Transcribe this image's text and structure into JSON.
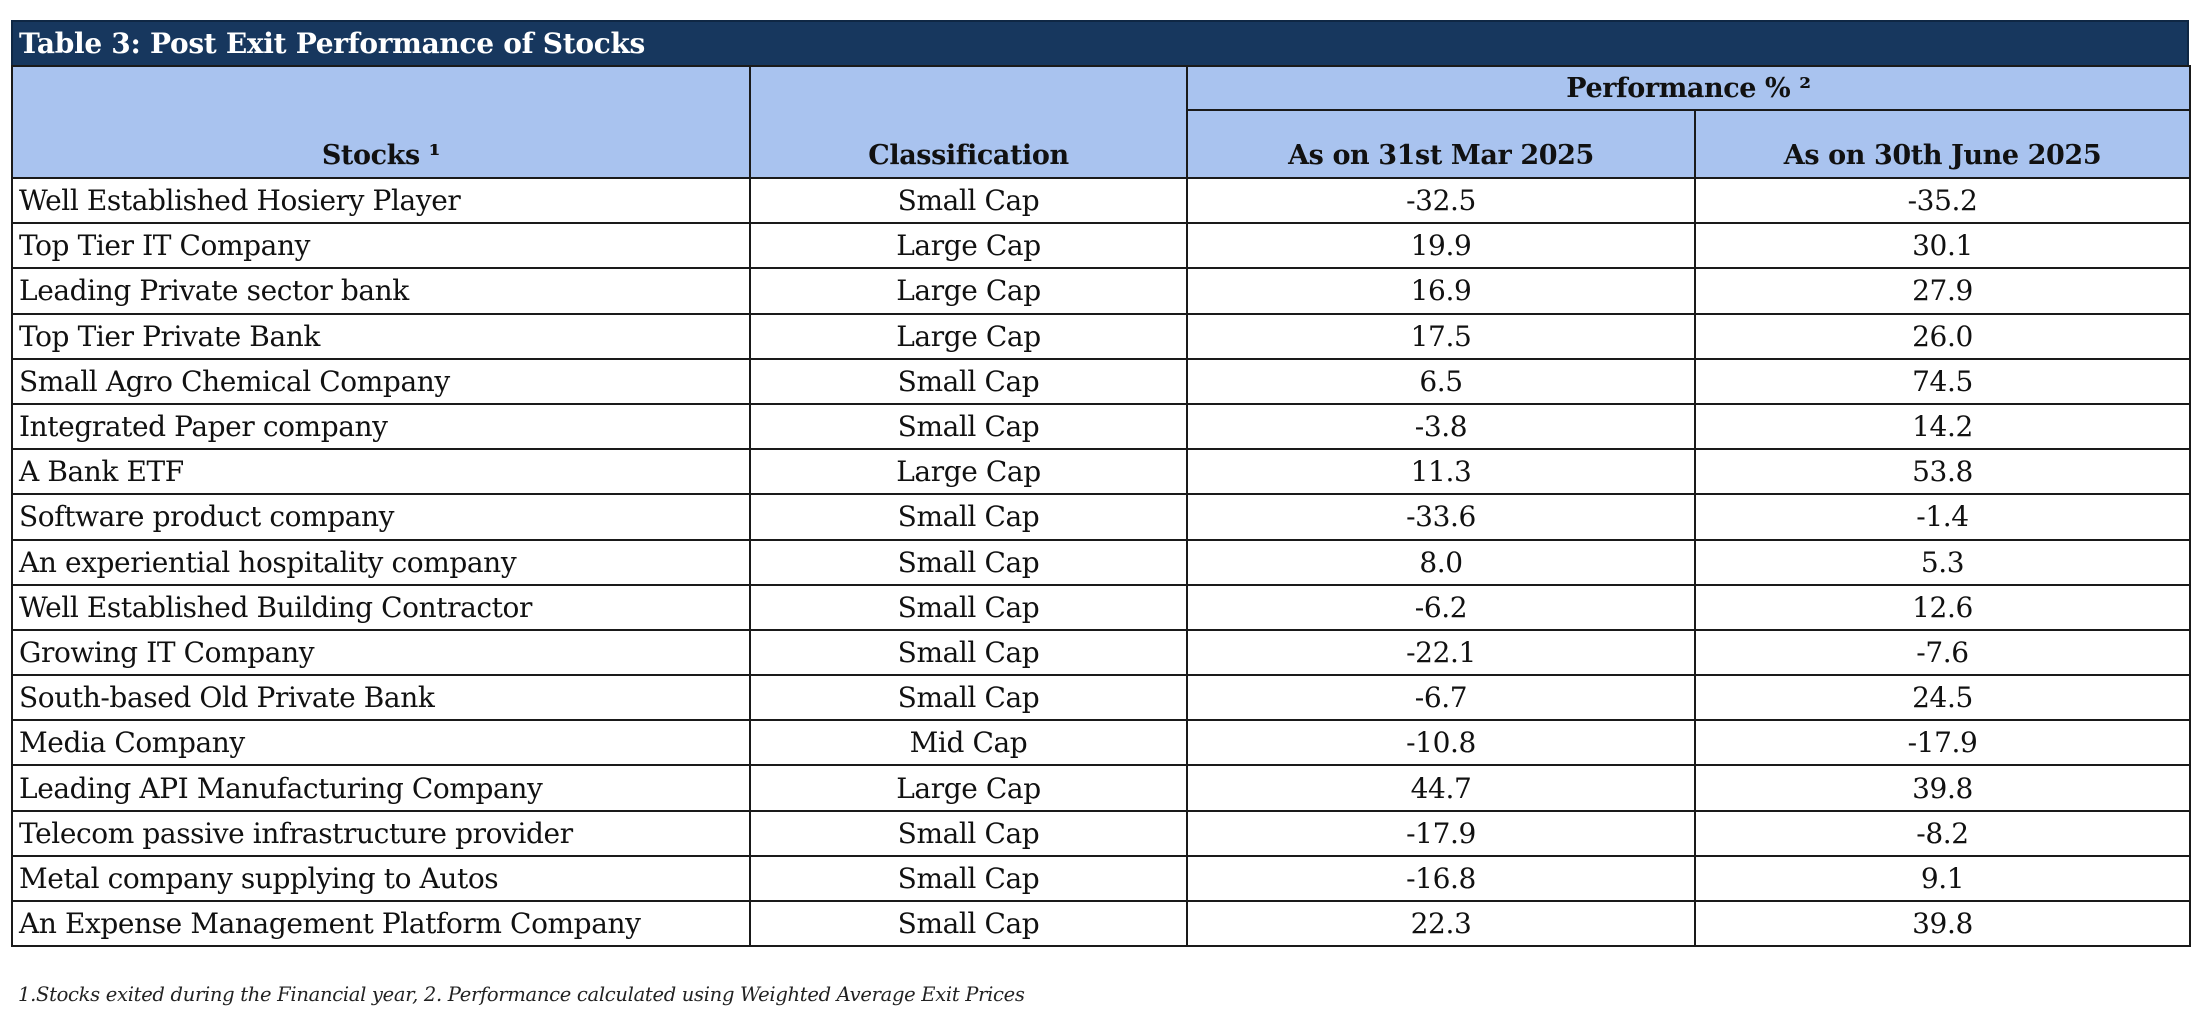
{
  "title": "Table 3: Post Exit Performance of Stocks",
  "headers": {
    "stocks": "Stocks ¹",
    "classification": "Classification",
    "performance": "Performance % ²",
    "mar": "As on 31st Mar 2025",
    "jun": "As on 30th June 2025"
  },
  "rows": [
    {
      "stock": "Well Established Hosiery Player",
      "class": "Small Cap",
      "mar": "-32.5",
      "jun": "-35.2"
    },
    {
      "stock": "Top Tier IT Company",
      "class": "Large Cap",
      "mar": "19.9",
      "jun": "30.1"
    },
    {
      "stock": "Leading Private sector bank",
      "class": "Large Cap",
      "mar": "16.9",
      "jun": "27.9"
    },
    {
      "stock": "Top Tier Private Bank",
      "class": "Large Cap",
      "mar": "17.5",
      "jun": "26.0"
    },
    {
      "stock": "Small Agro Chemical Company",
      "class": "Small Cap",
      "mar": "6.5",
      "jun": "74.5"
    },
    {
      "stock": "Integrated Paper company",
      "class": "Small Cap",
      "mar": "-3.8",
      "jun": "14.2"
    },
    {
      "stock": "A Bank ETF",
      "class": "Large Cap",
      "mar": "11.3",
      "jun": "53.8"
    },
    {
      "stock": "Software product company",
      "class": "Small Cap",
      "mar": "-33.6",
      "jun": "-1.4"
    },
    {
      "stock": "An experiential hospitality company",
      "class": "Small Cap",
      "mar": "8.0",
      "jun": "5.3"
    },
    {
      "stock": "Well Established Building Contractor",
      "class": "Small Cap",
      "mar": "-6.2",
      "jun": "12.6"
    },
    {
      "stock": "Growing IT Company",
      "class": "Small Cap",
      "mar": "-22.1",
      "jun": "-7.6"
    },
    {
      "stock": "South-based Old Private Bank",
      "class": "Small Cap",
      "mar": "-6.7",
      "jun": "24.5"
    },
    {
      "stock": "Media Company",
      "class": "Mid Cap",
      "mar": "-10.8",
      "jun": "-17.9"
    },
    {
      "stock": "Leading API Manufacturing Company",
      "class": "Large Cap",
      "mar": "44.7",
      "jun": "39.8"
    },
    {
      "stock": "Telecom passive infrastructure provider",
      "class": "Small Cap",
      "mar": "-17.9",
      "jun": "-8.2"
    },
    {
      "stock": "Metal company supplying to Autos",
      "class": "Small Cap",
      "mar": "-16.8",
      "jun": "9.1"
    },
    {
      "stock": "An Expense Management Platform Company",
      "class": "Small Cap",
      "mar": "22.3",
      "jun": "39.8"
    }
  ],
  "footnote": "1.Stocks exited during the Financial year,  2. Performance calculated using Weighted Average Exit Prices",
  "colors": {
    "title_bg": "#17375e",
    "header_bg": "#a9c3ef"
  }
}
